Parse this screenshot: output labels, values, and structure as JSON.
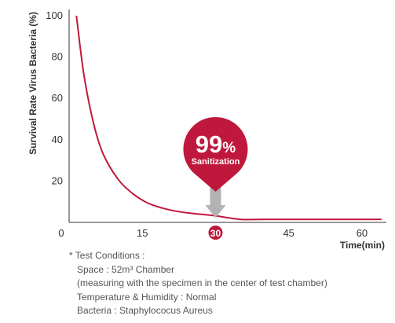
{
  "chart_data": {
    "type": "line",
    "ylabel": "Survival Rate Virus Bacteria (%)",
    "xlabel": "Time(min)",
    "x_ticks": [
      "0",
      "15",
      "30",
      "45",
      "60"
    ],
    "y_ticks": [
      "100",
      "80",
      "60",
      "40",
      "20"
    ],
    "xlim": [
      0,
      65
    ],
    "ylim": [
      0,
      100
    ],
    "highlighted_x_tick": "30",
    "series": [
      {
        "color": "#c0183c",
        "x": [
          1.5,
          3,
          5,
          7,
          10,
          13,
          16,
          19,
          22,
          25,
          28,
          30,
          35,
          40,
          45,
          50,
          55,
          60,
          64
        ],
        "y": [
          100,
          72,
          48,
          33,
          21,
          14,
          9.5,
          7,
          5.4,
          4.4,
          3.7,
          3.2,
          1.5,
          1.5,
          1.5,
          1.5,
          1.5,
          1.5,
          1.5
        ]
      }
    ],
    "annotation": {
      "x": 30,
      "y": 3,
      "value": "99",
      "unit": "%",
      "label": "Sanitization",
      "color": "#c0183c",
      "arrow_color": "#b3b3b3"
    },
    "grid": false
  },
  "notes": {
    "heading": "* Test Conditions :",
    "lines": [
      "Space : 52m³ Chamber",
      "(measuring with the specimen in the center of test chamber)",
      "Temperature & Humidity : Normal",
      "Bacteria : Staphylococus Aureus"
    ]
  }
}
